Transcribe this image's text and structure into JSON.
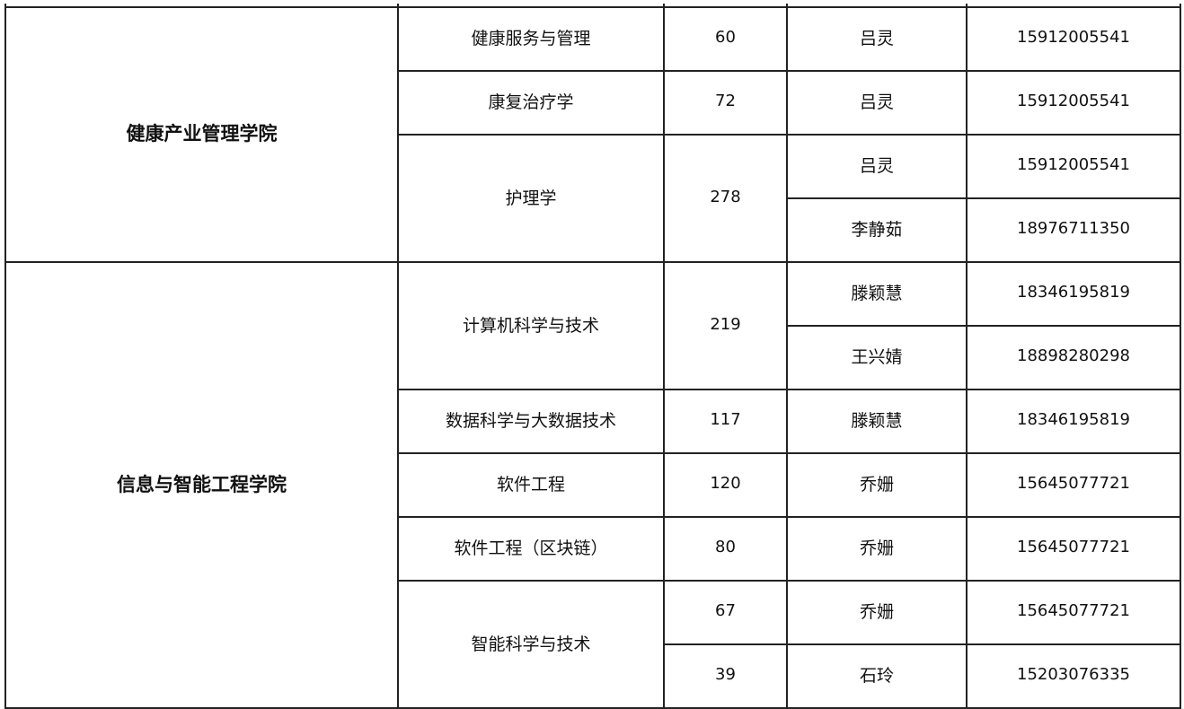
{
  "groups": [
    {
      "college": "健康产业管理学院",
      "majors": [
        {
          "name": "健康服务与管理",
          "contacts": [
            {
              "count": "60",
              "person": "吕灵",
              "phone": "15912005541"
            }
          ]
        },
        {
          "name": "康复治疗学",
          "contacts": [
            {
              "count": "72",
              "person": "吕灵",
              "phone": "15912005541"
            }
          ]
        },
        {
          "name": "护理学",
          "count": "278",
          "contacts": [
            {
              "person": "吕灵",
              "phone": "15912005541"
            },
            {
              "person": "李静茹",
              "phone": "18976711350"
            }
          ]
        }
      ]
    },
    {
      "college": "信息与智能工程学院",
      "majors": [
        {
          "name": "计算机科学与技术",
          "count": "219",
          "contacts": [
            {
              "person": "滕颖慧",
              "phone": "18346195819"
            },
            {
              "person": "王兴婧",
              "phone": "18898280298"
            }
          ]
        },
        {
          "name": "数据科学与大数据技术",
          "contacts": [
            {
              "count": "117",
              "person": "滕颖慧",
              "phone": "18346195819"
            }
          ]
        },
        {
          "name": "软件工程",
          "contacts": [
            {
              "count": "120",
              "person": "乔姗",
              "phone": "15645077721"
            }
          ]
        },
        {
          "name": "软件工程（区块链）",
          "contacts": [
            {
              "count": "80",
              "person": "乔姗",
              "phone": "15645077721"
            }
          ]
        },
        {
          "name": "智能科学与技术",
          "contacts": [
            {
              "count": "67",
              "person": "乔姗",
              "phone": "15645077721"
            },
            {
              "count": "39",
              "person": "石玲",
              "phone": "15203076335"
            }
          ]
        }
      ]
    }
  ]
}
